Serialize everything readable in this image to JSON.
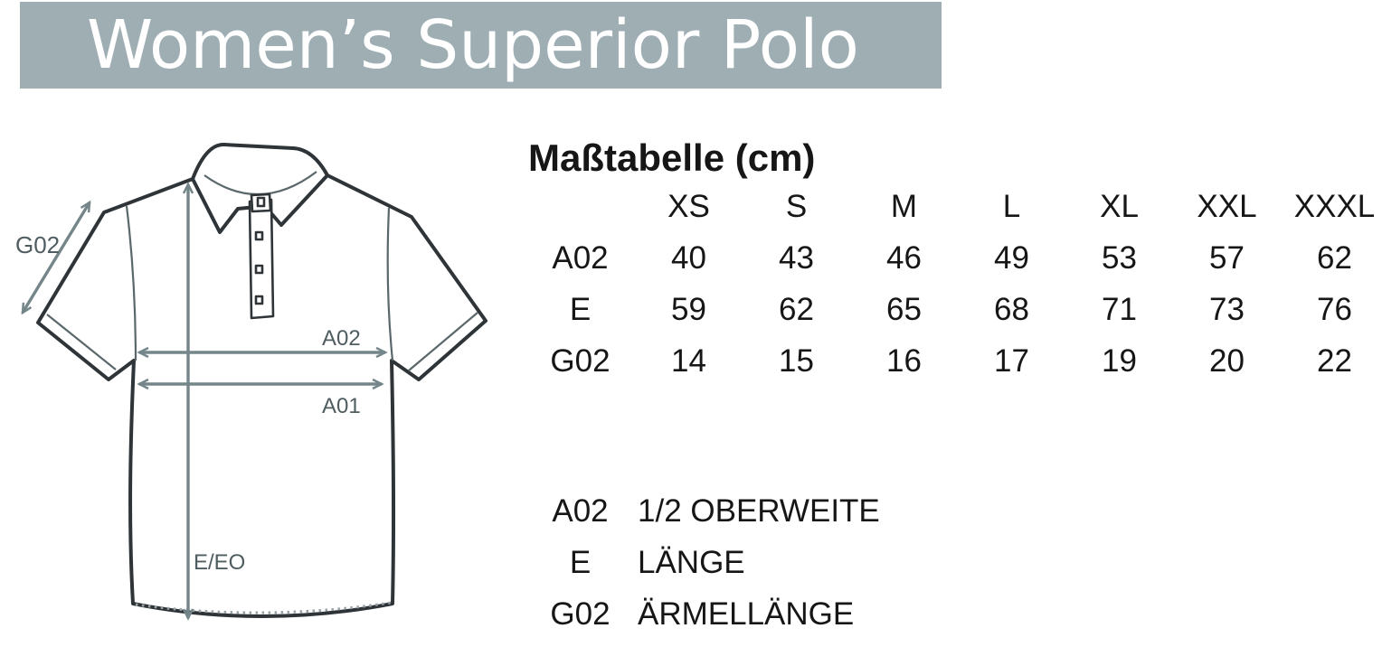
{
  "header": {
    "title": "Women’s Superior Polo",
    "bg_color": "#9EAEB3",
    "text_color": "#FFFFFF"
  },
  "size_table": {
    "title": "Maßtabelle (cm)",
    "columns": [
      "XS",
      "S",
      "M",
      "L",
      "XL",
      "XXL",
      "XXXL"
    ],
    "rows": [
      {
        "code": "A02",
        "values": [
          "40",
          "43",
          "46",
          "49",
          "53",
          "57",
          "62"
        ]
      },
      {
        "code": "E",
        "values": [
          "59",
          "62",
          "65",
          "68",
          "71",
          "73",
          "76"
        ]
      },
      {
        "code": "G02",
        "values": [
          "14",
          "15",
          "16",
          "17",
          "19",
          "20",
          "22"
        ]
      }
    ]
  },
  "legend": [
    {
      "code": "A02",
      "label": "1/2 OBERWEITE"
    },
    {
      "code": "E",
      "label": "LÄNGE"
    },
    {
      "code": "G02",
      "label": "ÄRMELLÄNGE"
    }
  ],
  "diagram": {
    "labels": {
      "sleeve_length": "G02",
      "half_chest": "A02",
      "half_waist": "A01",
      "length": "E/EO"
    },
    "colors": {
      "outline": "#2E3437",
      "seam": "#5A676B",
      "arrow": "#75868A",
      "label": "#4F5D61"
    }
  }
}
